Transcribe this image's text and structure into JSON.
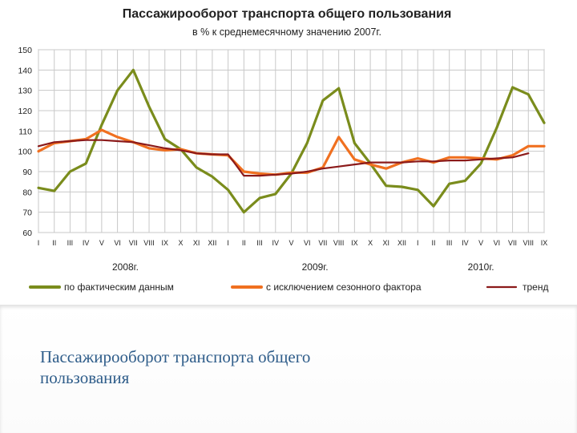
{
  "caption": {
    "line1": "Пассажирооборот транспорта общего",
    "line2": "пользования"
  },
  "chart_data": {
    "type": "line",
    "title": "Пассажирооборот транспорта общего пользования",
    "subtitle": "в % к среднемесячному значению 2007г.",
    "ylim": [
      60,
      150
    ],
    "yticks": [
      60,
      70,
      80,
      90,
      100,
      110,
      120,
      130,
      140,
      150
    ],
    "grid": true,
    "legend_position": "bottom",
    "months": [
      "I",
      "II",
      "III",
      "IV",
      "V",
      "VI",
      "VII",
      "VIII",
      "IX",
      "X",
      "XI",
      "XII",
      "I",
      "II",
      "III",
      "IV",
      "V",
      "VI",
      "VII",
      "VIII",
      "IX",
      "X",
      "XI",
      "XII",
      "I",
      "II",
      "III",
      "IV",
      "V",
      "VI",
      "VII",
      "VIII",
      "IX"
    ],
    "years": [
      {
        "label": "2008г.",
        "start": 0,
        "end": 11
      },
      {
        "label": "2009г.",
        "start": 12,
        "end": 23
      },
      {
        "label": "2010г.",
        "start": 24,
        "end": 32
      }
    ],
    "series": [
      {
        "name": "по фактическим данным",
        "color": "#7a8c1c",
        "values": [
          82,
          80.5,
          90,
          94,
          113,
          130,
          140,
          122,
          106,
          101,
          92,
          87.5,
          81,
          70,
          77,
          79,
          89,
          104,
          125,
          131,
          104,
          94,
          83,
          82.5,
          81,
          73,
          84,
          85.5,
          94,
          111.5,
          131.5,
          128,
          114
        ]
      },
      {
        "name": "с исключением сезонного фактора",
        "color": "#f07020",
        "values": [
          100,
          104,
          105,
          106,
          110.5,
          107,
          104.5,
          101.5,
          100.5,
          101,
          99,
          98.5,
          98,
          90,
          89,
          88.5,
          89.5,
          89.5,
          92,
          107,
          96,
          93.5,
          91.5,
          94.5,
          96.5,
          94.5,
          97,
          97,
          96.5,
          96,
          98,
          102.5,
          102.5
        ]
      },
      {
        "name": "тренд",
        "color": "#8b1a1a",
        "values": [
          102.5,
          104.5,
          105,
          105.5,
          105.5,
          105,
          104.5,
          103,
          101.5,
          100.5,
          99,
          98.5,
          98.5,
          88,
          88,
          88.5,
          89,
          90,
          91.5,
          92.5,
          93.5,
          94.5,
          94.5,
          94.5,
          95,
          95,
          95.5,
          95.5,
          96,
          96.5,
          97,
          99,
          null
        ]
      }
    ]
  }
}
